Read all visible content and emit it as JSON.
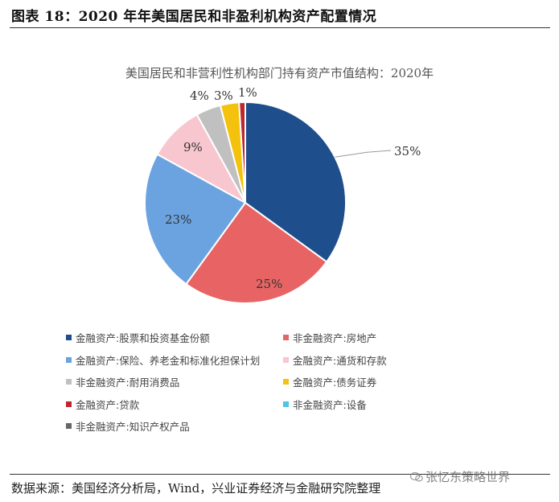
{
  "figure_title": "图表 18：2020 年年美国居民和非盈利机构资产配置情况",
  "source": "数据来源：美国经济分析局，Wind，兴业证券经济与金融研究院整理",
  "watermark": "张忆东策略世界",
  "chart_data": {
    "type": "pie",
    "title": "美国居民和非营利性机构部门持有资产市值结构：2020年",
    "slices": [
      {
        "name": "金融资产:股票和投资基金份额",
        "value": 35,
        "label": "35%",
        "color": "#1f4e8c"
      },
      {
        "name": "非金融资产:房地产",
        "value": 25,
        "label": "25%",
        "color": "#e86464"
      },
      {
        "name": "金融资产:保险、养老金和标准化担保计划",
        "value": 23,
        "label": "23%",
        "color": "#6aa3e0"
      },
      {
        "name": "金融资产:通货和存款",
        "value": 9,
        "label": "9%",
        "color": "#f8c6cf"
      },
      {
        "name": "非金融资产:耐用消费品",
        "value": 4,
        "label": "4%",
        "color": "#c0c0c0"
      },
      {
        "name": "金融资产:债务证券",
        "value": 3,
        "label": "3%",
        "color": "#f4c20d"
      },
      {
        "name": "金融资产:贷款",
        "value": 1,
        "label": "1%",
        "color": "#c0262d"
      },
      {
        "name": "非金融资产:设备",
        "value": 0,
        "label": "",
        "color": "#4fc3e8"
      },
      {
        "name": "非金融资产:知识产权产品",
        "value": 0,
        "label": "",
        "color": "#666666"
      }
    ],
    "legend_position": "bottom"
  }
}
